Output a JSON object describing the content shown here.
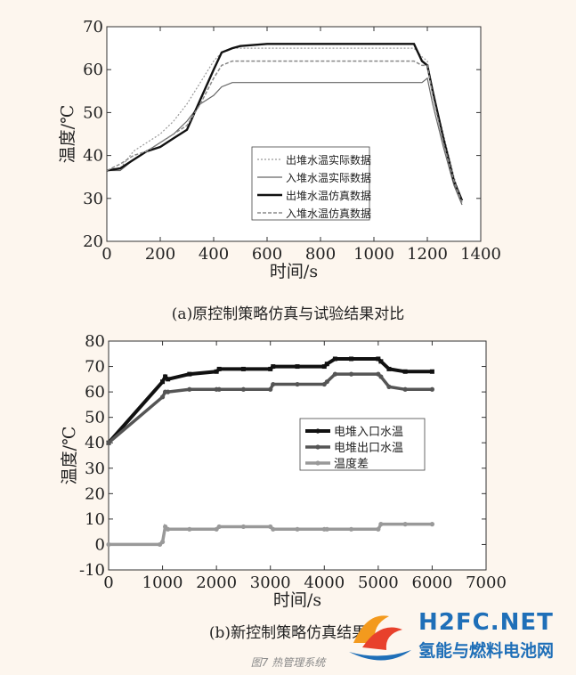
{
  "chart_data": [
    {
      "type": "line",
      "xlabel": "时间/s",
      "ylabel": "温度/℃",
      "xlim": [
        0,
        1400
      ],
      "ylim": [
        20,
        70
      ],
      "xticks": [
        0,
        200,
        400,
        600,
        800,
        1000,
        1200,
        1400
      ],
      "yticks": [
        20,
        30,
        40,
        50,
        60,
        70
      ],
      "legend_position": "center-right",
      "series": [
        {
          "name": "出堆水温实际数据",
          "x": [
            0,
            50,
            100,
            150,
            200,
            250,
            300,
            350,
            400,
            430,
            470,
            500,
            600,
            700,
            800,
            900,
            1000,
            1100,
            1150,
            1180,
            1200,
            1220,
            1260,
            1300,
            1330
          ],
          "y": [
            36.5,
            37,
            41,
            43,
            45,
            48,
            52,
            57,
            62,
            64,
            65,
            65,
            65,
            65,
            65,
            65,
            65,
            65,
            65,
            63,
            62,
            55,
            45,
            35,
            29
          ]
        },
        {
          "name": "入堆水温实际数据",
          "x": [
            0,
            50,
            100,
            150,
            200,
            250,
            300,
            350,
            400,
            430,
            470,
            500,
            600,
            700,
            800,
            900,
            1000,
            1100,
            1150,
            1180,
            1200,
            1220,
            1260,
            1300,
            1330
          ],
          "y": [
            36.5,
            36.5,
            39,
            41,
            43,
            45,
            48,
            52,
            54,
            56,
            57,
            57,
            57,
            57,
            57,
            57,
            57,
            57,
            57,
            57,
            58,
            52,
            42,
            33,
            28.5
          ]
        },
        {
          "name": "出堆水温仿真数据",
          "x": [
            0,
            50,
            100,
            150,
            200,
            250,
            300,
            350,
            400,
            430,
            470,
            500,
            600,
            700,
            800,
            900,
            1000,
            1100,
            1150,
            1180,
            1200,
            1220,
            1260,
            1300,
            1330
          ],
          "y": [
            36.5,
            37,
            39,
            41,
            42,
            44,
            46,
            53,
            60,
            64,
            65,
            65.5,
            66,
            66,
            66,
            66,
            66,
            66,
            66,
            62,
            61,
            55,
            44,
            34,
            29.5
          ]
        },
        {
          "name": "入堆水温仿真数据",
          "x": [
            0,
            50,
            100,
            150,
            200,
            250,
            300,
            350,
            400,
            430,
            470,
            500,
            600,
            700,
            800,
            900,
            1000,
            1100,
            1150,
            1180,
            1200,
            1220,
            1260,
            1300,
            1330
          ],
          "y": [
            36.5,
            38,
            40,
            41,
            43,
            45,
            47,
            52,
            58,
            61,
            62,
            62,
            62,
            62,
            62,
            62,
            62,
            62,
            62,
            61,
            61,
            54,
            43,
            34,
            29
          ]
        }
      ]
    },
    {
      "type": "line",
      "xlabel": "时间/s",
      "ylabel": "温度/℃",
      "xlim": [
        0,
        7000
      ],
      "ylim": [
        -10,
        80
      ],
      "xticks": [
        0,
        1000,
        2000,
        3000,
        4000,
        5000,
        6000,
        7000
      ],
      "yticks": [
        -10,
        0,
        10,
        20,
        30,
        40,
        50,
        60,
        70,
        80
      ],
      "legend_position": "center-right",
      "series": [
        {
          "name": "电堆入口水温",
          "x": [
            0,
            1000,
            1050,
            1100,
            1500,
            2000,
            2050,
            2500,
            3000,
            3050,
            3500,
            4000,
            4050,
            4200,
            4500,
            5000,
            5050,
            5200,
            5500,
            6000
          ],
          "y": [
            40,
            64,
            66,
            65,
            67,
            68,
            69,
            69,
            69,
            70,
            70,
            70,
            71,
            73,
            73,
            73,
            72,
            69,
            68,
            68
          ]
        },
        {
          "name": "电堆出口水温",
          "x": [
            0,
            1000,
            1050,
            1100,
            1500,
            2000,
            2050,
            2500,
            3000,
            3050,
            3500,
            4000,
            4050,
            4200,
            4500,
            5000,
            5050,
            5200,
            5500,
            6000
          ],
          "y": [
            40,
            58,
            60,
            60,
            61,
            61,
            61,
            61,
            61,
            63,
            63,
            63,
            64,
            67,
            67,
            67,
            66,
            62,
            61,
            61
          ]
        },
        {
          "name": "温度差",
          "x": [
            0,
            950,
            1000,
            1050,
            1100,
            1500,
            2000,
            2050,
            2500,
            3000,
            3050,
            3500,
            4000,
            4050,
            4500,
            5000,
            5050,
            5500,
            6000
          ],
          "y": [
            0,
            0,
            1,
            7,
            6,
            6,
            6,
            7,
            7,
            7,
            6,
            6,
            6,
            6,
            6,
            6,
            8,
            8,
            8
          ]
        }
      ]
    }
  ],
  "captions": {
    "a": "(a)原控制策略仿真与试验结果对比",
    "b": "(b)新控制策略仿真结果",
    "figure": "图7 热管理系统"
  },
  "watermark": {
    "en": "H2FC.NET",
    "cn": "氢能与燃料电池网",
    "colors": [
      "#f39a1e",
      "#e8412c",
      "#1f6fb8"
    ]
  }
}
